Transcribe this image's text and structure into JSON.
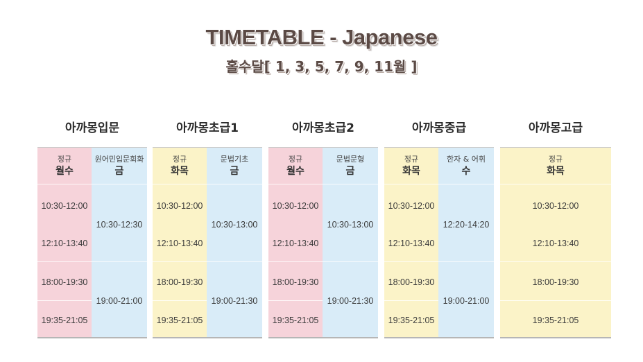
{
  "title": "TIMETABLE - Japanese",
  "subtitle": "홀수달[ 1, 3, 5, 7, 9, 11월 ]",
  "courses": [
    {
      "name": "아까몽입문",
      "left": {
        "type": "정규",
        "day": "월수",
        "times": [
          "10:30-12:00",
          "12:10-13:40",
          "18:00-19:30",
          "19:35-21:05"
        ]
      },
      "right": {
        "type": "원어민입문회화",
        "day": "금",
        "times": [
          "10:30-12:30",
          "19:00-21:00"
        ]
      }
    },
    {
      "name": "아까몽초급1",
      "left": {
        "type": "정규",
        "day": "화목",
        "times": [
          "10:30-12:00",
          "12:10-13:40",
          "18:00-19:30",
          "19:35-21:05"
        ]
      },
      "right": {
        "type": "문법기초",
        "day": "금",
        "times": [
          "10:30-13:00",
          "19:00-21:30"
        ]
      }
    },
    {
      "name": "아까몽초급2",
      "left": {
        "type": "정규",
        "day": "월수",
        "times": [
          "10:30-12:00",
          "12:10-13:40",
          "18:00-19:30",
          "19:35-21:05"
        ]
      },
      "right": {
        "type": "문법문형",
        "day": "금",
        "times": [
          "10:30-13:00",
          "19:00-21:30"
        ]
      }
    },
    {
      "name": "아까몽중급",
      "left": {
        "type": "정규",
        "day": "화목",
        "times": [
          "10:30-12:00",
          "12:10-13:40",
          "18:00-19:30",
          "19:35-21:05"
        ]
      },
      "right": {
        "type": "한자 & 어휘",
        "day": "수",
        "times": [
          "12:20-14:20",
          "19:00-21:00"
        ]
      }
    },
    {
      "name": "아까몽고급",
      "single": {
        "type": "정규",
        "day": "화목",
        "times": [
          "10:30-12:00",
          "12:10-13:40",
          "18:00-19:30",
          "19:35-21:05"
        ]
      }
    }
  ],
  "colors": {
    "pink": "#f6d3da",
    "yellow": "#fbf3c8",
    "blue": "#d9ecf8",
    "title": "#5b4a45"
  }
}
